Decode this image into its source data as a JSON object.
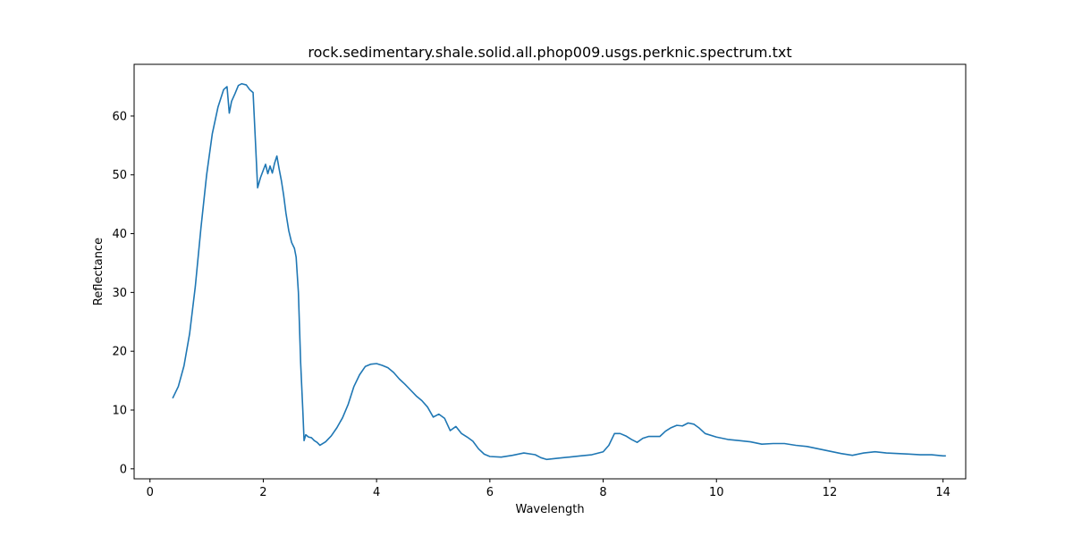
{
  "chart_data": {
    "type": "line",
    "title": "rock.sedimentary.shale.solid.all.phop009.usgs.perknic.spectrum.txt",
    "xlabel": "Wavelength",
    "ylabel": "Reflectance",
    "xlim": [
      -0.28,
      14.4
    ],
    "ylim": [
      -1.7,
      68.8
    ],
    "xticks": [
      0,
      2,
      4,
      6,
      8,
      10,
      12,
      14
    ],
    "yticks": [
      0,
      10,
      20,
      30,
      40,
      50,
      60
    ],
    "xtick_labels": [
      "0",
      "2",
      "4",
      "6",
      "8",
      "10",
      "12",
      "14"
    ],
    "ytick_labels": [
      "0",
      "10",
      "20",
      "30",
      "40",
      "50",
      "60"
    ],
    "grid": false,
    "legend": "none",
    "series": [
      {
        "color": "#1f77b4",
        "x": [
          0.4,
          0.5,
          0.6,
          0.7,
          0.8,
          0.9,
          1.0,
          1.1,
          1.2,
          1.3,
          1.36,
          1.4,
          1.44,
          1.5,
          1.56,
          1.62,
          1.7,
          1.76,
          1.82,
          1.86,
          1.9,
          1.95,
          2.0,
          2.04,
          2.08,
          2.12,
          2.16,
          2.2,
          2.24,
          2.28,
          2.32,
          2.36,
          2.4,
          2.45,
          2.5,
          2.55,
          2.58,
          2.62,
          2.66,
          2.7,
          2.72,
          2.75,
          2.8,
          2.85,
          2.9,
          2.95,
          3.0,
          3.1,
          3.2,
          3.3,
          3.4,
          3.5,
          3.6,
          3.7,
          3.8,
          3.9,
          4.0,
          4.1,
          4.2,
          4.3,
          4.4,
          4.5,
          4.6,
          4.7,
          4.8,
          4.9,
          5.0,
          5.1,
          5.2,
          5.3,
          5.4,
          5.5,
          5.6,
          5.7,
          5.8,
          5.9,
          6.0,
          6.2,
          6.4,
          6.6,
          6.8,
          6.9,
          7.0,
          7.2,
          7.4,
          7.6,
          7.8,
          8.0,
          8.1,
          8.2,
          8.3,
          8.4,
          8.5,
          8.6,
          8.7,
          8.8,
          8.9,
          9.0,
          9.1,
          9.2,
          9.3,
          9.4,
          9.5,
          9.6,
          9.7,
          9.8,
          10.0,
          10.2,
          10.4,
          10.6,
          10.8,
          11.0,
          11.2,
          11.4,
          11.6,
          11.8,
          12.0,
          12.2,
          12.4,
          12.6,
          12.8,
          13.0,
          13.2,
          13.4,
          13.6,
          13.8,
          14.0,
          14.05
        ],
        "y": [
          12.0,
          14.0,
          17.5,
          23.0,
          31.0,
          41.0,
          50.0,
          57.0,
          61.5,
          64.5,
          65.0,
          60.5,
          62.5,
          63.8,
          65.2,
          65.5,
          65.3,
          64.5,
          64.0,
          56.0,
          47.8,
          49.5,
          50.8,
          51.8,
          50.2,
          51.5,
          50.3,
          52.0,
          53.2,
          51.0,
          49.0,
          46.5,
          43.5,
          40.5,
          38.5,
          37.5,
          36.0,
          30.0,
          18.0,
          9.5,
          4.8,
          5.8,
          5.4,
          5.3,
          4.8,
          4.5,
          4.0,
          4.6,
          5.6,
          7.0,
          8.7,
          11.0,
          14.0,
          16.0,
          17.4,
          17.8,
          17.9,
          17.6,
          17.2,
          16.4,
          15.3,
          14.4,
          13.4,
          12.4,
          11.6,
          10.5,
          8.8,
          9.3,
          8.6,
          6.5,
          7.2,
          6.0,
          5.4,
          4.7,
          3.4,
          2.5,
          2.1,
          2.0,
          2.3,
          2.7,
          2.4,
          1.9,
          1.6,
          1.8,
          2.0,
          2.2,
          2.4,
          2.9,
          4.0,
          6.0,
          6.0,
          5.6,
          5.0,
          4.5,
          5.2,
          5.5,
          5.5,
          5.5,
          6.4,
          7.0,
          7.4,
          7.3,
          7.8,
          7.6,
          6.9,
          6.0,
          5.4,
          5.0,
          4.8,
          4.6,
          4.2,
          4.3,
          4.3,
          4.0,
          3.8,
          3.4,
          3.0,
          2.6,
          2.3,
          2.7,
          2.9,
          2.7,
          2.6,
          2.5,
          2.4,
          2.4,
          2.2,
          2.2
        ]
      }
    ]
  }
}
